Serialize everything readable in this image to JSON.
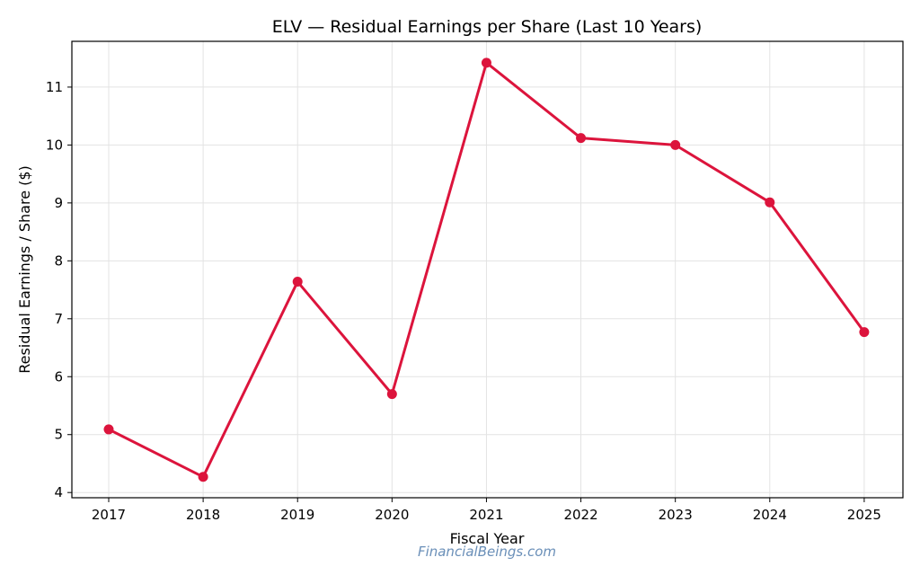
{
  "chart_data": {
    "type": "line",
    "title": "ELV — Residual Earnings per Share (Last 10 Years)",
    "xlabel": "Fiscal Year",
    "ylabel": "Residual Earnings / Share ($)",
    "x": [
      2017,
      2018,
      2019,
      2020,
      2021,
      2022,
      2023,
      2024,
      2025
    ],
    "series": [
      {
        "values": [
          5.09,
          4.27,
          7.64,
          5.7,
          11.42,
          10.12,
          10.0,
          9.01,
          6.77
        ],
        "color": "#dc143c",
        "marker": "circle"
      }
    ],
    "xticks": [
      "2017",
      "2018",
      "2019",
      "2020",
      "2021",
      "2022",
      "2023",
      "2024",
      "2025"
    ],
    "yticks": [
      "4",
      "5",
      "6",
      "7",
      "8",
      "9",
      "10",
      "11"
    ],
    "xlim": [
      2016.61,
      2025.41
    ],
    "ylim": [
      3.91,
      11.79
    ],
    "grid": true,
    "legend": "none"
  },
  "watermark": "FinancialBeings.com"
}
